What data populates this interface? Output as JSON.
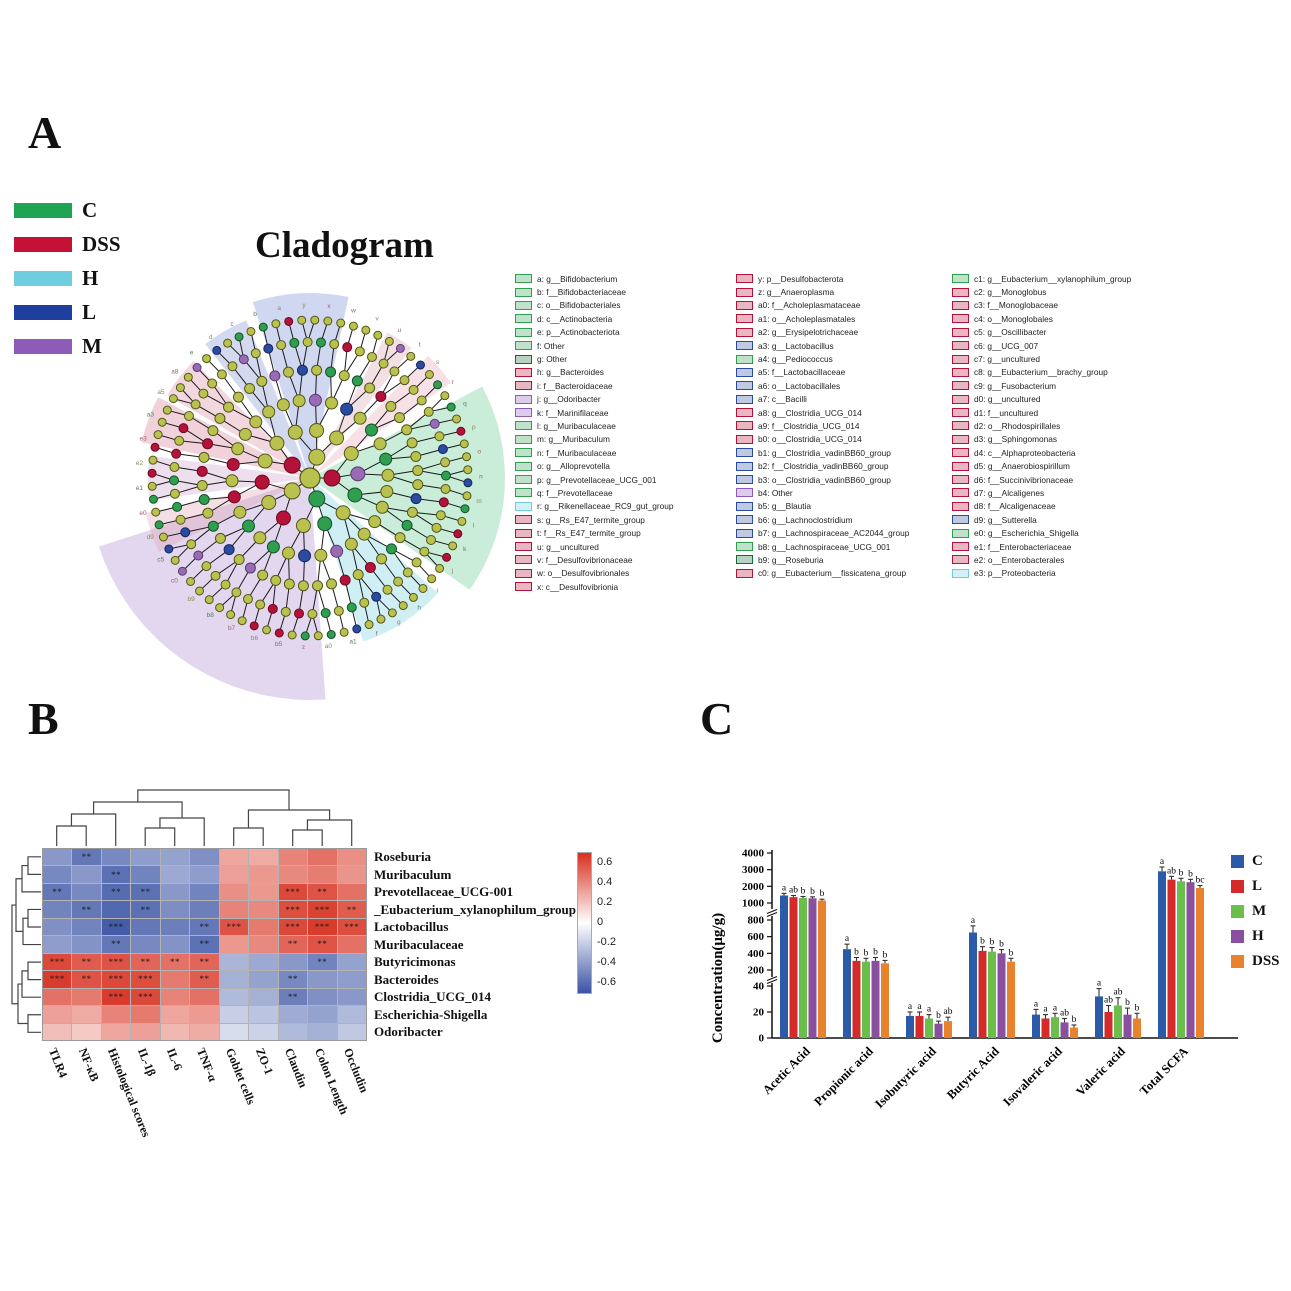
{
  "panelA": {
    "label": "A",
    "title": "Cladogram",
    "groups": [
      {
        "label": "C",
        "color": "#1fa452"
      },
      {
        "label": "DSS",
        "color": "#c41236"
      },
      {
        "label": "H",
        "color": "#6fcde0"
      },
      {
        "label": "L",
        "color": "#1f3f9e"
      },
      {
        "label": "M",
        "color": "#8e5bb8"
      }
    ],
    "legend_colors": {
      "green": "#2f9e4f",
      "darkgreen": "#156b35",
      "red": "#b5123a",
      "blue": "#2b4ba0",
      "lightblue": "#6fcde0",
      "purple": "#8e5bb8",
      "pink": "#d98aa8"
    },
    "legend_columns": [
      [
        {
          "key": "a",
          "text": "g__Bifidobacterium",
          "color": "green"
        },
        {
          "key": "b",
          "text": "f__Bifidobacteriaceae",
          "color": "green"
        },
        {
          "key": "c",
          "text": "o__Bifidobacteriales",
          "color": "green"
        },
        {
          "key": "d",
          "text": "c__Actinobacteria",
          "color": "green"
        },
        {
          "key": "e",
          "text": "p__Actinobacteriota",
          "color": "green"
        },
        {
          "key": "f",
          "text": "Other",
          "color": "green"
        },
        {
          "key": "g",
          "text": "Other",
          "color": "darkgreen"
        },
        {
          "key": "h",
          "text": "g__Bacteroides",
          "color": "red"
        },
        {
          "key": "i",
          "text": "f__Bacteroidaceae",
          "color": "red"
        },
        {
          "key": "j",
          "text": "g__Odoribacter",
          "color": "purple"
        },
        {
          "key": "k",
          "text": "f__Marinifilaceae",
          "color": "purple"
        },
        {
          "key": "l",
          "text": "g__Muribaculaceae",
          "color": "green"
        },
        {
          "key": "m",
          "text": "g__Muribaculum",
          "color": "green"
        },
        {
          "key": "n",
          "text": "f__Muribaculaceae",
          "color": "green"
        },
        {
          "key": "o",
          "text": "g__Alloprevotella",
          "color": "green"
        },
        {
          "key": "p",
          "text": "g__Prevotellaceae_UCG_001",
          "color": "green"
        },
        {
          "key": "q",
          "text": "f__Prevotellaceae",
          "color": "green"
        },
        {
          "key": "r",
          "text": "g__Rikenellaceae_RC9_gut_group",
          "color": "lightblue"
        },
        {
          "key": "s",
          "text": "g__Rs_E47_termite_group",
          "color": "red"
        },
        {
          "key": "t",
          "text": "f__Rs_E47_termite_group",
          "color": "red"
        },
        {
          "key": "u",
          "text": "g__uncultured",
          "color": "red"
        },
        {
          "key": "v",
          "text": "f__Desulfovibrionaceae",
          "color": "red"
        },
        {
          "key": "w",
          "text": "o__Desulfovibrionales",
          "color": "red"
        },
        {
          "key": "x",
          "text": "c__Desulfovibrionia",
          "color": "red"
        }
      ],
      [
        {
          "key": "y",
          "text": "p__Desulfobacterota",
          "color": "red"
        },
        {
          "key": "z",
          "text": "g__Anaeroplasma",
          "color": "red"
        },
        {
          "key": "a0",
          "text": "f__Acholeplasmataceae",
          "color": "red"
        },
        {
          "key": "a1",
          "text": "o__Acholeplasmatales",
          "color": "red"
        },
        {
          "key": "a2",
          "text": "g__Erysipelotrichaceae",
          "color": "red"
        },
        {
          "key": "a3",
          "text": "g__Lactobacillus",
          "color": "blue"
        },
        {
          "key": "a4",
          "text": "g__Pediococcus",
          "color": "green"
        },
        {
          "key": "a5",
          "text": "f__Lactobacillaceae",
          "color": "blue"
        },
        {
          "key": "a6",
          "text": "o__Lactobacillales",
          "color": "blue"
        },
        {
          "key": "a7",
          "text": "c__Bacilli",
          "color": "blue"
        },
        {
          "key": "a8",
          "text": "g__Clostridia_UCG_014",
          "color": "red"
        },
        {
          "key": "a9",
          "text": "f__Clostridia_UCG_014",
          "color": "red"
        },
        {
          "key": "b0",
          "text": "o__Clostridia_UCG_014",
          "color": "red"
        },
        {
          "key": "b1",
          "text": "g__Clostridia_vadinBB60_group",
          "color": "blue"
        },
        {
          "key": "b2",
          "text": "f__Clostridia_vadinBB60_group",
          "color": "blue"
        },
        {
          "key": "b3",
          "text": "o__Clostridia_vadinBB60_group",
          "color": "blue"
        },
        {
          "key": "b4",
          "text": "Other",
          "color": "purple"
        },
        {
          "key": "b5",
          "text": "g__Blautia",
          "color": "blue"
        },
        {
          "key": "b6",
          "text": "g__Lachnoclostridium",
          "color": "blue"
        },
        {
          "key": "b7",
          "text": "g__Lachnospiraceae_AC2044_group",
          "color": "blue"
        },
        {
          "key": "b8",
          "text": "g__Lachnospiraceae_UCG_001",
          "color": "green"
        },
        {
          "key": "b9",
          "text": "g__Roseburia",
          "color": "darkgreen"
        },
        {
          "key": "c0",
          "text": "g__Eubacterium__fissicatena_group",
          "color": "red"
        }
      ],
      [
        {
          "key": "c1",
          "text": "g__Eubacterium__xylanophilum_group",
          "color": "green"
        },
        {
          "key": "c2",
          "text": "g__Monoglobus",
          "color": "red"
        },
        {
          "key": "c3",
          "text": "f__Monoglobaceae",
          "color": "red"
        },
        {
          "key": "c4",
          "text": "o__Monoglobales",
          "color": "red"
        },
        {
          "key": "c5",
          "text": "g__Oscillibacter",
          "color": "red"
        },
        {
          "key": "c6",
          "text": "g__UCG_007",
          "color": "red"
        },
        {
          "key": "c7",
          "text": "g__uncultured",
          "color": "red"
        },
        {
          "key": "c8",
          "text": "g__Eubacterium__brachy_group",
          "color": "red"
        },
        {
          "key": "c9",
          "text": "g__Fusobacterium",
          "color": "red"
        },
        {
          "key": "d0",
          "text": "g__uncultured",
          "color": "red"
        },
        {
          "key": "d1",
          "text": "f__uncultured",
          "color": "red"
        },
        {
          "key": "d2",
          "text": "o__Rhodospirillales",
          "color": "red"
        },
        {
          "key": "d3",
          "text": "g__Sphingomonas",
          "color": "red"
        },
        {
          "key": "d4",
          "text": "c__Alphaproteobacteria",
          "color": "red"
        },
        {
          "key": "d5",
          "text": "g__Anaerobiospirillum",
          "color": "red"
        },
        {
          "key": "d6",
          "text": "f__Succinivibrionaceae",
          "color": "red"
        },
        {
          "key": "d7",
          "text": "g__Alcaligenes",
          "color": "red"
        },
        {
          "key": "d8",
          "text": "f__Alcaligenaceae",
          "color": "red"
        },
        {
          "key": "d9",
          "text": "g__Sutterella",
          "color": "blue"
        },
        {
          "key": "e0",
          "text": "g__Escherichia_Shigella",
          "color": "green"
        },
        {
          "key": "e1",
          "text": "f__Enterobacteriaceae",
          "color": "red"
        },
        {
          "key": "e2",
          "text": "o__Enterobacterales",
          "color": "red"
        },
        {
          "key": "e3",
          "text": "p__Proteobacteria",
          "color": "lightblue"
        }
      ]
    ],
    "cladogram_outer_labels": [
      "y",
      "x",
      "w",
      "v",
      "u",
      "t",
      "s",
      "r",
      "q",
      "p",
      "o",
      "n",
      "m",
      "l",
      "k",
      "j",
      "i",
      "h",
      "g",
      "f",
      "a1",
      "a0",
      "z",
      "b5",
      "b6",
      "b7",
      "b8",
      "b9",
      "c0",
      "c5",
      "d9",
      "e0",
      "e1",
      "e2",
      "e3",
      "a3",
      "a5",
      "a8",
      "e",
      "d",
      "c",
      "b",
      "a"
    ],
    "cladogram_wedges": [
      {
        "start": -35,
        "end": 28,
        "r": 195,
        "color": "#57c785",
        "opacity": 0.32
      },
      {
        "start": -72,
        "end": -42,
        "r": 172,
        "color": "#8fd9e8",
        "opacity": 0.42
      },
      {
        "start": -162,
        "end": -86,
        "r": 222,
        "color": "#b08fd4",
        "opacity": 0.36
      },
      {
        "start": 78,
        "end": 108,
        "r": 185,
        "color": "#8f9fdd",
        "opacity": 0.42
      },
      {
        "start": 112,
        "end": 128,
        "r": 170,
        "color": "#7f8fd0",
        "opacity": 0.34
      },
      {
        "start": 135,
        "end": 150,
        "r": 165,
        "color": "#e09ab0",
        "opacity": 0.4
      },
      {
        "start": 152,
        "end": 168,
        "r": 172,
        "color": "#d98aa0",
        "opacity": 0.38
      },
      {
        "start": 172,
        "end": 188,
        "r": 162,
        "color": "#c9a0c9",
        "opacity": 0.34
      },
      {
        "start": 192,
        "end": 206,
        "r": 168,
        "color": "#e0a0b0",
        "opacity": 0.34
      },
      {
        "start": 34,
        "end": 46,
        "r": 170,
        "color": "#e8a8b8",
        "opacity": 0.34
      },
      {
        "start": 52,
        "end": 62,
        "r": 165,
        "color": "#d898a8",
        "opacity": 0.3
      }
    ]
  },
  "panelB": {
    "label": "B"
  },
  "panelC": {
    "label": "C"
  },
  "chart_data": [
    {
      "id": "cladogram",
      "type": "other",
      "title": "Cladogram",
      "groups": [
        "C",
        "DSS",
        "H",
        "L",
        "M"
      ]
    },
    {
      "id": "correlation_heatmap",
      "type": "heatmap",
      "rows": [
        "Roseburia",
        "Muribaculum",
        "Prevotellaceae_UCG-001",
        "_Eubacterium_xylanophilum_group",
        "Lactobacillus",
        "Muribaculaceae",
        "Butyricimonas",
        "Bacteroides",
        "Clostridia_UCG_014",
        "Escherichia-Shigella",
        "Odoribacter"
      ],
      "columns": [
        "TLR4",
        "NF-κB",
        "Histological scores",
        "IL-1β",
        "IL-6",
        "TNF-α",
        "Goblet cells",
        "ZO-1",
        "Claudin",
        "Colon Length",
        "Occludin"
      ],
      "values": [
        [
          -0.42,
          -0.55,
          -0.48,
          -0.4,
          -0.38,
          -0.45,
          0.3,
          0.28,
          0.42,
          0.48,
          0.38
        ],
        [
          -0.48,
          -0.42,
          -0.58,
          -0.5,
          -0.35,
          -0.4,
          0.32,
          0.35,
          0.4,
          0.44,
          0.36
        ],
        [
          -0.55,
          -0.48,
          -0.6,
          -0.58,
          -0.42,
          -0.5,
          0.38,
          0.35,
          0.62,
          0.58,
          0.48
        ],
        [
          -0.5,
          -0.55,
          -0.62,
          -0.58,
          -0.46,
          -0.52,
          0.42,
          0.4,
          0.6,
          0.64,
          0.55
        ],
        [
          -0.45,
          -0.5,
          -0.66,
          -0.55,
          -0.52,
          -0.55,
          0.58,
          0.45,
          0.62,
          0.66,
          0.6
        ],
        [
          -0.4,
          -0.44,
          -0.55,
          -0.48,
          -0.44,
          -0.58,
          0.35,
          0.4,
          0.52,
          0.58,
          0.48
        ],
        [
          0.62,
          0.55,
          0.58,
          0.52,
          0.48,
          0.52,
          -0.3,
          -0.35,
          -0.42,
          -0.5,
          -0.38
        ],
        [
          0.66,
          0.58,
          0.62,
          0.6,
          0.45,
          0.55,
          -0.32,
          -0.38,
          -0.48,
          -0.42,
          -0.4
        ],
        [
          0.48,
          0.45,
          0.66,
          0.62,
          0.42,
          0.48,
          -0.28,
          -0.32,
          -0.52,
          -0.45,
          -0.42
        ],
        [
          0.32,
          0.28,
          0.42,
          0.45,
          0.3,
          0.34,
          -0.2,
          -0.24,
          -0.34,
          -0.38,
          -0.28
        ],
        [
          0.22,
          0.18,
          0.3,
          0.32,
          0.24,
          0.28,
          -0.14,
          -0.18,
          -0.28,
          -0.32,
          -0.22
        ]
      ],
      "stars": [
        [
          "",
          "**",
          "",
          "",
          "",
          "",
          "",
          "",
          "",
          "",
          ""
        ],
        [
          "",
          "",
          "**",
          "",
          "",
          "",
          "",
          "",
          "",
          "",
          ""
        ],
        [
          "**",
          "",
          "**",
          "**",
          "",
          "",
          "",
          "",
          "***",
          "**",
          ""
        ],
        [
          "",
          "**",
          "",
          "**",
          "",
          "",
          "",
          "",
          "***",
          "***",
          "**"
        ],
        [
          "",
          "",
          "***",
          "",
          "",
          "**",
          "***",
          "",
          "***",
          "***",
          "***"
        ],
        [
          "",
          "",
          "**",
          "",
          "",
          "**",
          "",
          "",
          "**",
          "**",
          ""
        ],
        [
          "***",
          "**",
          "***",
          "**",
          "**",
          "**",
          "",
          "",
          "",
          "**",
          ""
        ],
        [
          "***",
          "**",
          "***",
          "***",
          "",
          "**",
          "",
          "",
          "**",
          "",
          ""
        ],
        [
          "",
          "",
          "***",
          "***",
          "",
          "",
          "",
          "",
          "**",
          "",
          ""
        ],
        [
          "",
          "",
          "",
          "",
          "",
          "",
          "",
          "",
          "",
          "",
          ""
        ],
        [
          "",
          "",
          "",
          "",
          "",
          "",
          "",
          "",
          "",
          "",
          ""
        ]
      ],
      "colorbar_ticks": [
        0.6,
        0.4,
        0.2,
        0,
        -0.2,
        -0.4,
        -0.6
      ],
      "vmin": -0.7,
      "vmax": 0.7,
      "colors": {
        "positive": "#d7301f",
        "negative": "#3a53a4",
        "mid": "#ffffff"
      }
    },
    {
      "id": "scfa_concentrations",
      "type": "bar",
      "ylabel": "Concentration(μg/g)",
      "categories": [
        "Acetic Acid",
        "Propionic acid",
        "Isobutyric acid",
        "Butyric Acid",
        "Isovaleric acid",
        "Valeric acid",
        "Total SCFA"
      ],
      "y_axis_segments": [
        [
          0,
          20,
          40
        ],
        [
          200,
          400,
          600,
          800
        ],
        [
          1000,
          2000,
          3000,
          4000
        ]
      ],
      "series": [
        {
          "name": "C",
          "color": "#2b5ba8",
          "values": [
            1450,
            450,
            17,
            650,
            18,
            32,
            2900
          ],
          "errors": [
            130,
            60,
            3,
            80,
            4,
            6,
            260
          ],
          "letters": [
            "a",
            "a",
            "a",
            "a",
            "a",
            "a",
            "a"
          ]
        },
        {
          "name": "L",
          "color": "#d42a2a",
          "values": [
            1350,
            310,
            17,
            430,
            15,
            20,
            2400
          ],
          "errors": [
            100,
            40,
            3,
            50,
            3,
            5,
            200
          ],
          "letters": [
            "ab",
            "b",
            "a",
            "b",
            "a",
            "ab",
            "ab"
          ]
        },
        {
          "name": "M",
          "color": "#6abf4b",
          "values": [
            1300,
            300,
            15,
            420,
            16,
            25,
            2300
          ],
          "errors": [
            90,
            40,
            3,
            50,
            3,
            6,
            180
          ],
          "letters": [
            "b",
            "b",
            "a",
            "b",
            "a",
            "ab",
            "b"
          ]
        },
        {
          "name": "H",
          "color": "#8a4f9e",
          "values": [
            1280,
            310,
            11,
            400,
            12,
            18,
            2250
          ],
          "errors": [
            90,
            40,
            2,
            45,
            3,
            5,
            170
          ],
          "letters": [
            "b",
            "b",
            "b",
            "b",
            "ab",
            "b",
            "b"
          ]
        },
        {
          "name": "DSS",
          "color": "#e8822d",
          "values": [
            1150,
            280,
            13,
            300,
            8,
            15,
            1900
          ],
          "errors": [
            80,
            35,
            3,
            40,
            2,
            4,
            150
          ],
          "letters": [
            "b",
            "b",
            "ab",
            "b",
            "b",
            "b",
            "bc"
          ]
        }
      ],
      "legend_position": "right"
    }
  ]
}
